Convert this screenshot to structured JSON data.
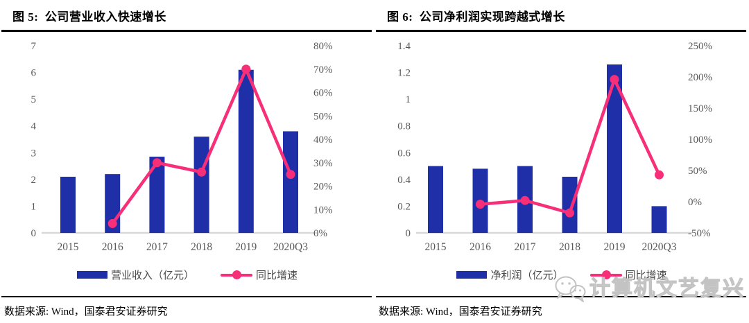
{
  "colors": {
    "bar": "#1F2FA8",
    "line": "#F72E78",
    "axis_text": "#595959",
    "legend_text": "#4A4A4A",
    "title_text": "#000000",
    "baseline": "#D9D9D9",
    "rule": "#000000",
    "watermark": "#C3C3C3"
  },
  "panels": [
    {
      "title": "图 5:  公司营业收入快速增长",
      "legend": [
        {
          "label": "营业收入（亿元）",
          "type": "bar"
        },
        {
          "label": "同比增速",
          "type": "line"
        }
      ],
      "source": "数据来源: Wind，国泰君安证券研究"
    },
    {
      "title": "图 6:  公司净利润实现跨越式增长",
      "legend": [
        {
          "label": "净利润（亿元）",
          "type": "bar"
        },
        {
          "label": "同比增速",
          "type": "line"
        }
      ],
      "source": "数据来源: Wind，国泰君安证券研究"
    }
  ],
  "chart_data": [
    {
      "type": "bar",
      "title": "图 5: 公司营业收入快速增长",
      "categories": [
        "2015",
        "2016",
        "2017",
        "2018",
        "2019",
        "2020Q3"
      ],
      "series": [
        {
          "name": "营业收入（亿元）",
          "type": "bar",
          "axis": "left",
          "values": [
            2.1,
            2.2,
            2.85,
            3.6,
            6.1,
            3.8
          ]
        },
        {
          "name": "同比增速",
          "type": "line",
          "axis": "right",
          "unit": "%",
          "values": [
            null,
            4,
            30,
            26,
            70,
            25
          ]
        }
      ],
      "left_axis": {
        "min": 0,
        "max": 7,
        "step": 1,
        "ticks": [
          "0",
          "1",
          "2",
          "3",
          "4",
          "5",
          "6",
          "7"
        ]
      },
      "right_axis": {
        "min": 0,
        "max": 80,
        "step": 10,
        "ticks": [
          "0%",
          "10%",
          "20%",
          "30%",
          "40%",
          "50%",
          "60%",
          "70%",
          "80%"
        ]
      },
      "grid": false,
      "legend_position": "bottom"
    },
    {
      "type": "bar",
      "title": "图 6: 公司净利润实现跨越式增长",
      "categories": [
        "2015",
        "2016",
        "2017",
        "2018",
        "2019",
        "2020Q3"
      ],
      "series": [
        {
          "name": "净利润（亿元）",
          "type": "bar",
          "axis": "left",
          "values": [
            0.5,
            0.48,
            0.5,
            0.42,
            1.26,
            0.2
          ]
        },
        {
          "name": "同比增速",
          "type": "line",
          "axis": "right",
          "unit": "%",
          "values": [
            null,
            -4,
            2,
            -18,
            196,
            43
          ]
        }
      ],
      "left_axis": {
        "min": 0,
        "max": 1.4,
        "step": 0.2,
        "ticks": [
          "0",
          "0.2",
          "0.4",
          "0.6",
          "0.8",
          "1",
          "1.2",
          "1.4"
        ]
      },
      "right_axis": {
        "min": -50,
        "max": 250,
        "step": 50,
        "ticks": [
          "-50%",
          "0%",
          "50%",
          "100%",
          "150%",
          "200%",
          "250%"
        ]
      },
      "grid": false,
      "legend_position": "bottom"
    }
  ],
  "watermark": {
    "text": "计算机文艺复兴",
    "icon": "wechat-icon"
  }
}
